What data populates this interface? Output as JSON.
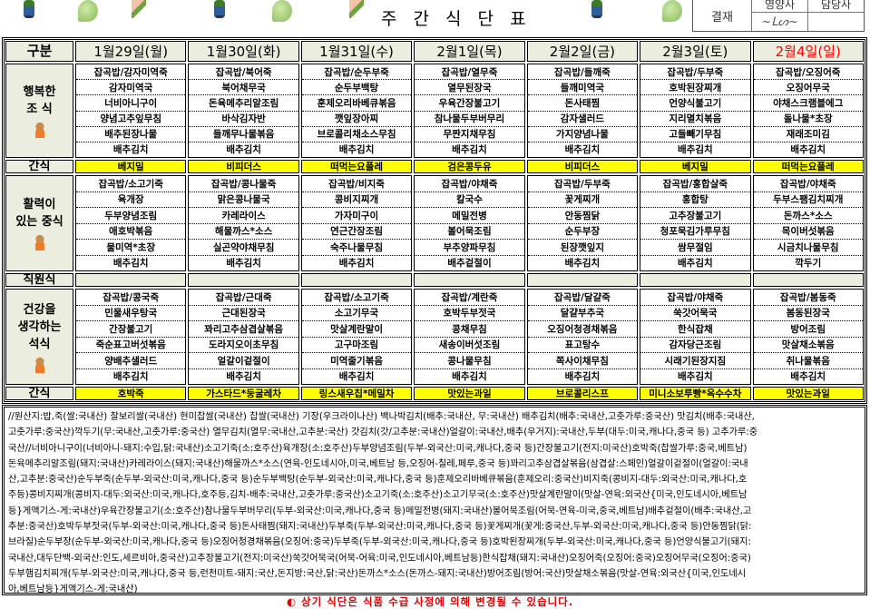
{
  "header": {
    "title": "주 간 식 단 표",
    "approval": {
      "label": "결재",
      "roles": [
        "영양사",
        "담당사"
      ]
    }
  },
  "colors": {
    "label_bg": "#ebeedf",
    "snack_bg": "#ffff00",
    "sunday": "#ff0000",
    "notice": "#e00000"
  },
  "table": {
    "corner": "구분",
    "days": [
      {
        "label": "1월29일(월)",
        "holiday": false
      },
      {
        "label": "1월30일(화)",
        "holiday": false
      },
      {
        "label": "1월31일(수)",
        "holiday": false
      },
      {
        "label": "2월1일(목)",
        "holiday": false
      },
      {
        "label": "2월2일(금)",
        "holiday": false
      },
      {
        "label": "2월3일(토)",
        "holiday": false
      },
      {
        "label": "2월4일(일)",
        "holiday": true
      }
    ],
    "breakfast": {
      "label": [
        "행복한",
        "조 식"
      ],
      "menus": [
        [
          "잡곡밥/감자미역죽",
          "감자미역국",
          "너비아니구이",
          "양념고추잎무침",
          "배추된장나물",
          "배추김치"
        ],
        [
          "잡곡밥/북어죽",
          "북어채무국",
          "돈육메추리알조림",
          "바삭김자반",
          "들깨무나물볶음",
          "배추김치"
        ],
        [
          "잡곡밥/순두부죽",
          "순두부백탕",
          "훈제오리바베큐볶음",
          "깻잎장아찌",
          "브로콜리채소스무침",
          "배추김치"
        ],
        [
          "잡곡밥/열무죽",
          "열무된장국",
          "우육간장불고기",
          "참나물두부버무리",
          "무짠지채무침",
          "배추김치"
        ],
        [
          "잡곡밥/들깨죽",
          "들깨미역국",
          "돈사태찜",
          "감자샐러드",
          "가지양념나물",
          "배추김치"
        ],
        [
          "잡곡밥/두부죽",
          "호박된장찌개",
          "언양식불고기",
          "지리멸치볶음",
          "고들빼기무침",
          "배추김치"
        ],
        [
          "잡곡밥/오징어죽",
          "오징어무국",
          "야채스크램블에그",
          "돌나물*초장",
          "재래조미김",
          "배추김치"
        ]
      ]
    },
    "snack1": {
      "label": "간식",
      "items": [
        "베지밀",
        "비피더스",
        "떠먹는요플레",
        "검은콩두유",
        "비피더스",
        "베지밀",
        "떠먹는요플레"
      ]
    },
    "lunch": {
      "label": [
        "활력이",
        "있는 중식"
      ],
      "menus": [
        [
          "잡곡밥/소고기죽",
          "육개장",
          "두부양념조림",
          "애호박볶음",
          "물미역*초장",
          "배추김치"
        ],
        [
          "잡곡밥/콩나물죽",
          "맑은콩나물국",
          "카레라이스",
          "해물까스*소스",
          "실곤약야채무침",
          "배추김치"
        ],
        [
          "잡곡밥/비지죽",
          "콩비지찌개",
          "가자미구이",
          "연근간장조림",
          "숙주나물무침",
          "배추김치"
        ],
        [
          "잡곡밥/야채죽",
          "칼국수",
          "메밀전병",
          "볼어묵조림",
          "부추양파무침",
          "배추겉절이"
        ],
        [
          "잡곡밥/두부죽",
          "꽃게찌개",
          "안동찜닭",
          "순두부장",
          "된장깻잎지",
          "배추김치"
        ],
        [
          "잡곡밥/홍합살죽",
          "홍합탕",
          "고추장불고기",
          "청포묵김가루무침",
          "쌈무절임",
          "배추김치"
        ],
        [
          "잡곡밥/야채죽",
          "두부스팸김치찌개",
          "돈까스*소스",
          "목이버섯볶음",
          "시금치나물무침",
          "깍두기"
        ]
      ]
    },
    "staff": {
      "label": "직원식"
    },
    "dinner": {
      "label": [
        "건강을",
        "생각하는",
        "석식"
      ],
      "menus": [
        [
          "잡곡밥/콩국죽",
          "민물새우탕국",
          "간장불고기",
          "죽순표고버섯볶음",
          "양배추샐러드",
          "배추김치"
        ],
        [
          "잡곡밥/근대죽",
          "근대된장국",
          "꽈리고추삼겹살볶음",
          "도라지오이초무침",
          "얼갈이겉절이",
          "배추김치"
        ],
        [
          "잡곡밥/소고기죽",
          "소고기무국",
          "맛살계란말이",
          "고구마조림",
          "미역줄기볶음",
          "배추김치"
        ],
        [
          "잡곡밥/계란죽",
          "호박두부젓국",
          "콩채무침",
          "새송이버섯조림",
          "콩나물무침",
          "배추김치"
        ],
        [
          "잡곡밥/달걀죽",
          "달걀부추국",
          "오징어청경채볶음",
          "표고탕수",
          "쪽사이채무침",
          "배추김치"
        ],
        [
          "잡곡밥/야채죽",
          "쑥갓어묵국",
          "한식잡채",
          "감자당근조림",
          "시래기된장지짐",
          "배추김치"
        ],
        [
          "잡곡밥/봄동죽",
          "봄동된장국",
          "방어조림",
          "맛살채소볶음",
          "취나물볶음",
          "배추김치"
        ]
      ]
    },
    "snack2": {
      "label": "간식",
      "items": [
        "호박죽",
        "가스타드*둥굴레차",
        "링스새우칩*메밀차",
        "맛있는과일",
        "브로콜리스프",
        "미니소보루빵*옥수수차",
        "맛있는과일"
      ]
    }
  },
  "origin_lines": [
    "//원산지:밥,죽(쌀:국내산) 찰보리쌀(국내산) 현미찹쌀(국내산) 찹쌀(국내산) 기장(우크라이나산) 백나박김치(배추:국내산, 무:국내산) 배추김치(배추:국내산,고춧가루:중국산) 맛김치(배추:국내산,",
    "고춧가루:중국산)깍두기(무:국내산,고춧가루:중국산) 열무김치(열무:국내산,고추분:국산) 갓김치(갓/고추분:국내산)얼갈이:국내산,배추(우거지):국내산,두부(대두:미국,캐나다,중국 등) 고추가루:중",
    "국산//너비아니구이(너비아니-돼지:수입,닭:국내산)소고기죽(소:호주산)육개장(소:호주산)두부양념조림(두부-외국산:미국,캐나다,중국 등)간장불고기(전지:미국산)호박죽(찹쌀가루:중국,베트남)",
    "돈육메추리알조림(돼지:국내산)카레라이스(돼지:국내산)해물까스*소스(연육-인도네시아,미국,베트남 등,오징어-칠레,페루,중국 등)꽈리고추삼겹살볶음(삼겹살:스페인)얼갈이겉절이(얼갈이:국내",
    "산,고추분:중국산)순두부죽(순두부-외국산:미국,캐나다,중국 등)순두부백탕(순두부-외국산:미국,캐나다,중국 등)훈제오리바베큐볶음(훈제오리:중국산)비지죽(콩비지-대두:외국산:미국,캐나다,호",
    "주등)콩비지찌개(콩비지-대두:외국산:미국,캐나다,호주등,김치-배추:국내산,고춧가루:중국산)소고기죽(소:호주산)소고기무국(소:호주산)맛살계란말이(맛살-연육:외국산{미국,인도네시아,베트남",
    "등}게액기스-게:국내산)우육간장불고기(소:호주산)참나물두부버무리(두부-외국산:미국,캐나다,중국 등)메밀전병(돼지:국내산)볼어묵조림(어묵-연육-미국,중국,베트남)배추겉절이(배추:국내산,고",
    "추분:중국산)호박두부젓국(두부-외국산:미국,캐나다,중국 등)돈사태찜(돼지:국내산)두부죽(두부-외국산:미국,캐나다,중국 등)꽃게찌개(꽃게:중국산,두부-외국산:미국,캐나다,중국 등)안동찜닭(닭:",
    "브라질)순두부장(순두부-외국산:미국,캐나다,중국 등)오징어청경채볶음(오징어:중국)두부죽(두부-외국산:미국,캐나다,중국 등)호박된장찌개(두부-외국산:미국,캐나다,중국 등)언양식불고기(돼지:",
    "국내산,대두단백-외국산:인도,세르비아,중국산)고추장불고기(전지:미국산)쑥갓어묵국(어묵-어육:미국,인도네시아,베트남등)한식잡채(돼지:국내산)오징어죽(오징어:중국)오징어무국(오징어:중국)",
    "두부햄김치찌개(두부-외국산:미국,캐나다,중국 등,런천미트-돼지:국산,돈지방:국산,닭:국산)돈까스*소스(돈까스-돼지:국내산)방어조림(방어:국산)맛살채소볶음(맛살-연육:외국산{미국,인도네시",
    "아,베트남등}게액기스-게:국내산)"
  ],
  "notice": "◐ 상기 식단은 식품 수급 사정에 의해 변경될 수 있습니다."
}
